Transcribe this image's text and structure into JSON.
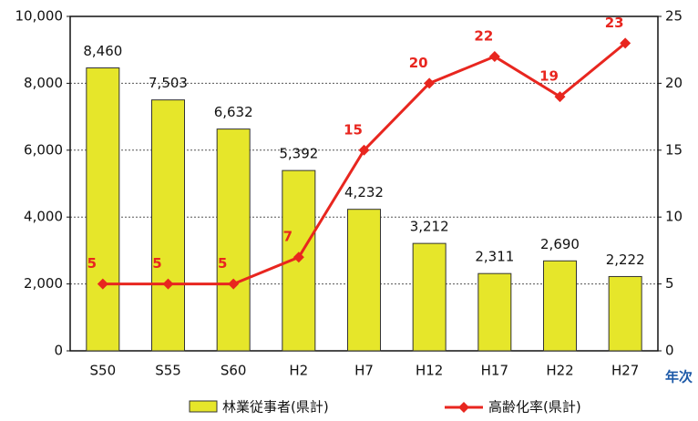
{
  "chart_data": {
    "type": "bar_line",
    "categories": [
      "S50",
      "S55",
      "S60",
      "H2",
      "H7",
      "H12",
      "H17",
      "H22",
      "H27"
    ],
    "x_label": "年次",
    "series": [
      {
        "name": "林業従事者(県計)",
        "color": "#e6e62a",
        "values": [
          8460,
          7503,
          6632,
          5392,
          4232,
          3212,
          2311,
          2690,
          2222
        ],
        "value_labels": [
          "8,460",
          "7,503",
          "6,632",
          "5,392",
          "4,232",
          "3,212",
          "2,311",
          "2,690",
          "2,222"
        ]
      },
      {
        "name": "高齢化率(県計)",
        "color": "#e8261f",
        "axis": "y2",
        "values": [
          5,
          5,
          5,
          7,
          15,
          20,
          22,
          19,
          23
        ]
      }
    ],
    "ylim": [
      0,
      10000
    ],
    "yticks": [
      0,
      {
        "value": 2000,
        "label": "2,000"
      },
      {
        "value": 4000,
        "label": "4,000"
      },
      {
        "value": 6000,
        "label": "6,000"
      },
      {
        "value": 8000,
        "label": "8,000"
      },
      {
        "value": 10000,
        "label": "10,000"
      }
    ],
    "y2lim": [
      0,
      25
    ],
    "y2ticks": [
      0,
      5,
      10,
      15,
      20,
      25
    ],
    "grid": true
  }
}
